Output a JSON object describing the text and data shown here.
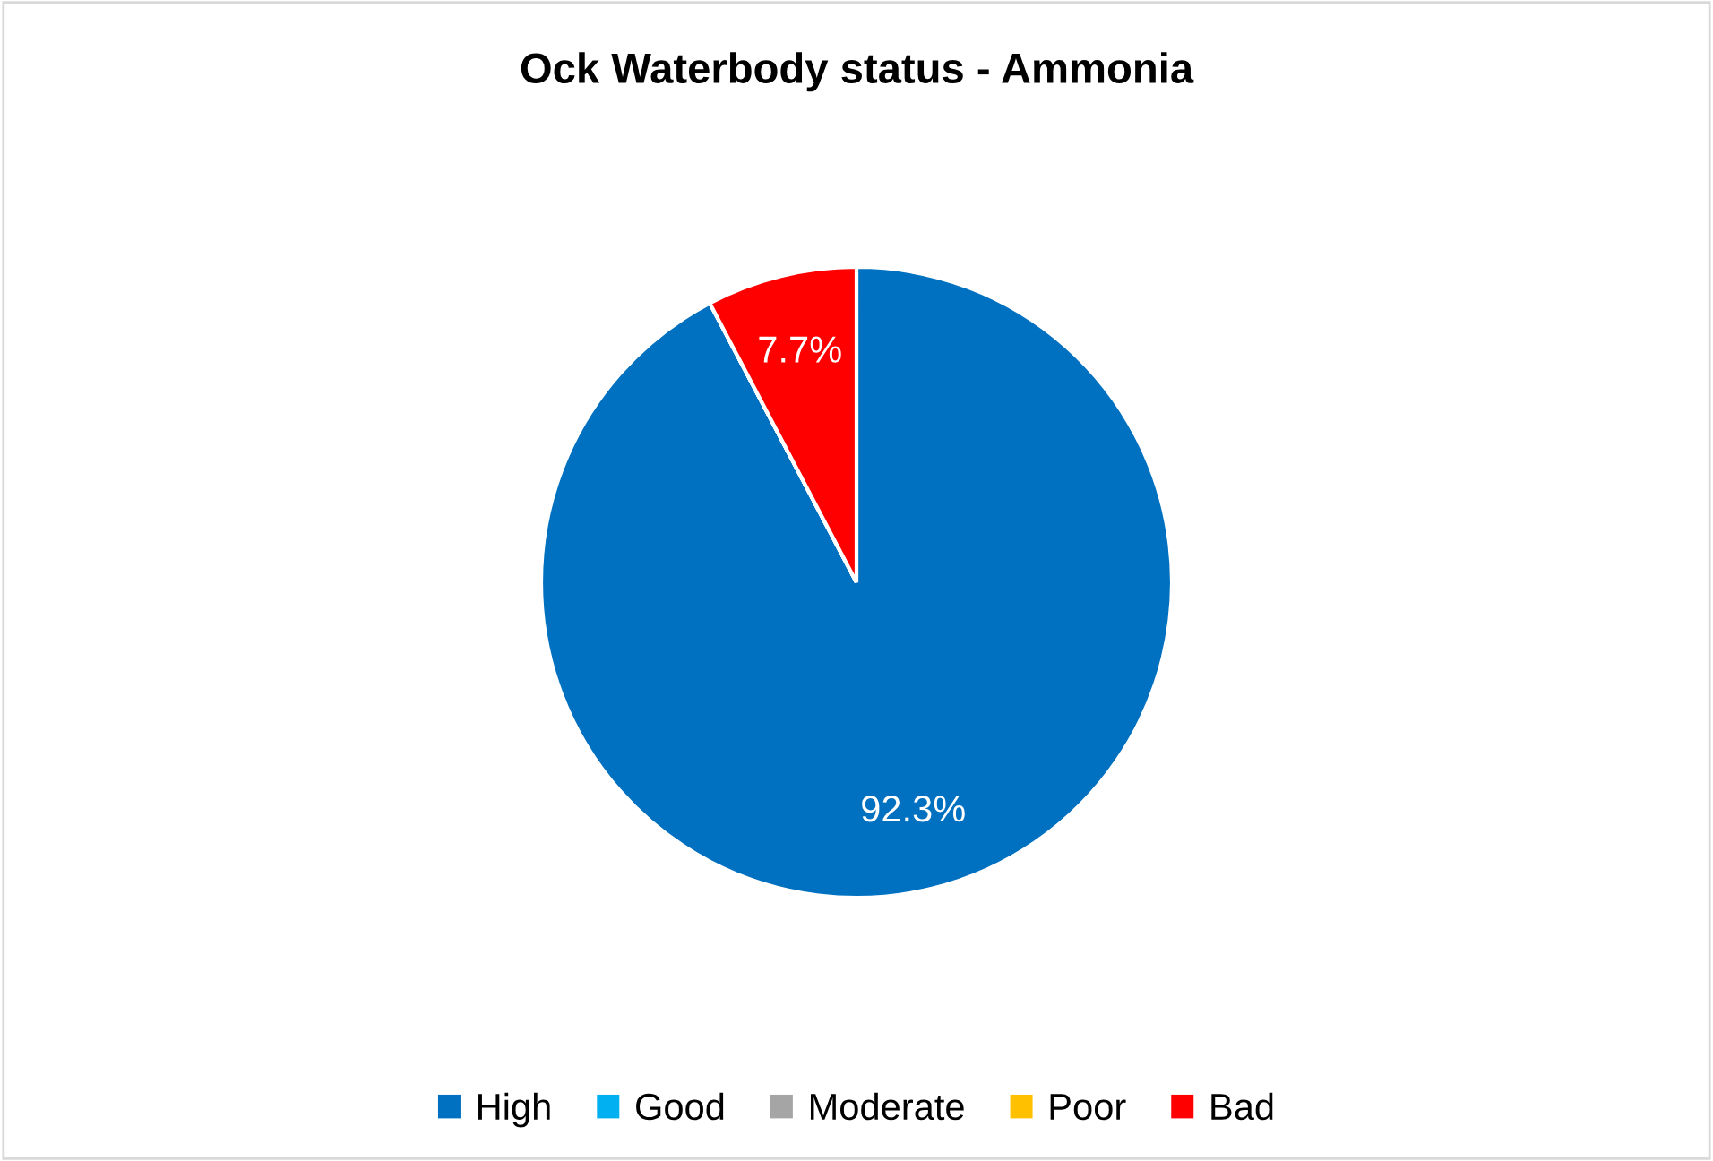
{
  "chart_data": {
    "type": "pie",
    "title": "Ock Waterbody status - Ammonia",
    "categories": [
      "High",
      "Good",
      "Moderate",
      "Poor",
      "Bad"
    ],
    "values": [
      92.3,
      0,
      0,
      0,
      7.7
    ],
    "colors": [
      "#0070c0",
      "#00b0f0",
      "#a5a5a5",
      "#ffc000",
      "#ff0000"
    ],
    "value_labels": [
      "92.3%",
      null,
      null,
      null,
      "7.7%"
    ],
    "legend": "bottom"
  }
}
